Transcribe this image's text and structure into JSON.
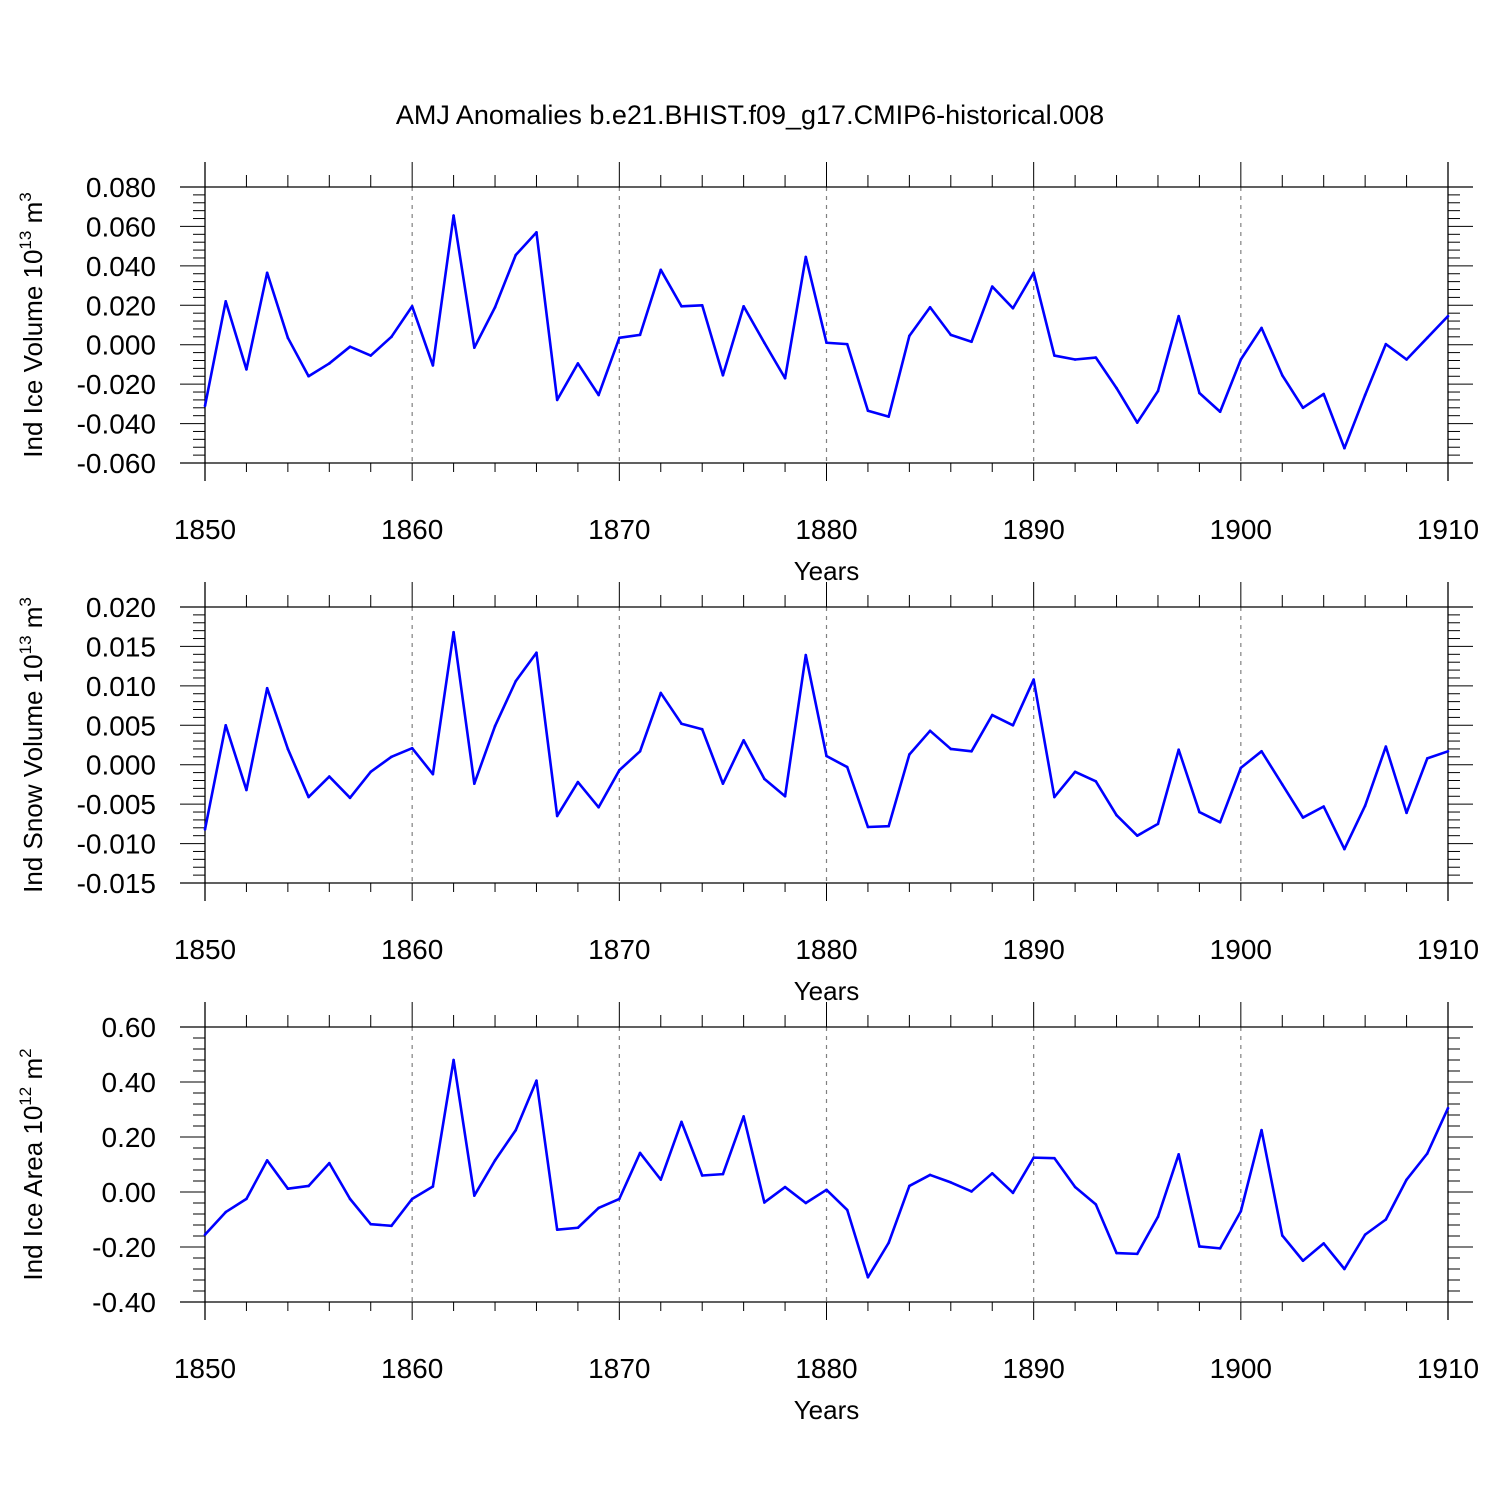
{
  "title": "AMJ Anomalies b.e21.BHIST.f09_g17.CMIP6-historical.008",
  "line_color": "#0000ff",
  "chart_data": [
    {
      "type": "line",
      "ylabel": "Ind Ice Volume 10",
      "ylabel_exp": "13",
      "ylabel_unit": " m",
      "ylabel_unit_exp": "3",
      "xlabel": "Years",
      "xlim": [
        1850,
        1910
      ],
      "ylim": [
        -0.06,
        0.08
      ],
      "x_ticks": [
        "1850",
        "1860",
        "1870",
        "1880",
        "1890",
        "1900",
        "1910"
      ],
      "y_ticks": [
        "0.080",
        "0.060",
        "0.040",
        "0.020",
        "0.000",
        "-0.020",
        "-0.040",
        "-0.060"
      ],
      "x": [
        1850,
        1851,
        1852,
        1853,
        1854,
        1855,
        1856,
        1857,
        1858,
        1859,
        1860,
        1861,
        1862,
        1863,
        1864,
        1865,
        1866,
        1867,
        1868,
        1869,
        1870,
        1871,
        1872,
        1873,
        1874,
        1875,
        1876,
        1877,
        1878,
        1879,
        1880,
        1881,
        1882,
        1883,
        1884,
        1885,
        1886,
        1887,
        1888,
        1889,
        1890,
        1891,
        1892,
        1893,
        1894,
        1895,
        1896,
        1897,
        1898,
        1899,
        1900,
        1901,
        1902,
        1903,
        1904,
        1905,
        1906,
        1907,
        1908,
        1909,
        1910
      ],
      "values": [
        -0.031,
        0.022,
        -0.0125,
        0.0365,
        0.0035,
        -0.016,
        -0.0095,
        -0.001,
        -0.0055,
        0.004,
        0.0195,
        -0.0105,
        0.0655,
        -0.0015,
        0.019,
        0.0455,
        0.057,
        -0.028,
        -0.0095,
        -0.0255,
        0.0035,
        0.005,
        0.038,
        0.0195,
        0.02,
        -0.0155,
        0.0195,
        0.001,
        -0.017,
        0.0445,
        0.001,
        0.0003,
        -0.0335,
        -0.0365,
        0.0045,
        0.019,
        0.005,
        0.0015,
        0.0295,
        0.0185,
        0.0365,
        -0.0055,
        -0.0075,
        -0.0065,
        -0.022,
        -0.0395,
        -0.0235,
        0.0145,
        -0.0245,
        -0.034,
        -0.0075,
        0.0085,
        -0.0155,
        -0.032,
        -0.025,
        -0.0525,
        -0.0255,
        0.0003,
        -0.0075,
        0.0035,
        0.0145
      ]
    },
    {
      "type": "line",
      "ylabel": "Ind Snow Volume 10",
      "ylabel_exp": "13",
      "ylabel_unit": " m",
      "ylabel_unit_exp": "3",
      "xlabel": "Years",
      "xlim": [
        1850,
        1910
      ],
      "ylim": [
        -0.015,
        0.02
      ],
      "x_ticks": [
        "1850",
        "1860",
        "1870",
        "1880",
        "1890",
        "1900",
        "1910"
      ],
      "y_ticks": [
        "0.020",
        "0.015",
        "0.010",
        "0.005",
        "0.000",
        "-0.005",
        "-0.010",
        "-0.015"
      ],
      "x": [
        1850,
        1851,
        1852,
        1853,
        1854,
        1855,
        1856,
        1857,
        1858,
        1859,
        1860,
        1861,
        1862,
        1863,
        1864,
        1865,
        1866,
        1867,
        1868,
        1869,
        1870,
        1871,
        1872,
        1873,
        1874,
        1875,
        1876,
        1877,
        1878,
        1879,
        1880,
        1881,
        1882,
        1883,
        1884,
        1885,
        1886,
        1887,
        1888,
        1889,
        1890,
        1891,
        1892,
        1893,
        1894,
        1895,
        1896,
        1897,
        1898,
        1899,
        1900,
        1901,
        1902,
        1903,
        1904,
        1905,
        1906,
        1907,
        1908,
        1909,
        1910
      ],
      "values": [
        -0.0082,
        0.005,
        -0.0032,
        0.0097,
        0.002,
        -0.0041,
        -0.0015,
        -0.0042,
        -0.0009,
        0.001,
        0.0021,
        -0.0012,
        0.0168,
        -0.0024,
        0.0049,
        0.0106,
        0.0142,
        -0.0065,
        -0.0022,
        -0.0054,
        -0.0007,
        0.0017,
        0.0091,
        0.0052,
        0.0045,
        -0.0024,
        0.0031,
        -0.0018,
        -0.004,
        0.0139,
        0.0011,
        -0.0003,
        -0.0079,
        -0.0078,
        0.0013,
        0.0043,
        0.002,
        0.0017,
        0.0063,
        0.005,
        0.0108,
        -0.0041,
        -0.0009,
        -0.0021,
        -0.0064,
        -0.009,
        -0.0075,
        0.0019,
        -0.006,
        -0.0073,
        -0.0004,
        0.0017,
        -0.0025,
        -0.0067,
        -0.0053,
        -0.0107,
        -0.0052,
        0.0023,
        -0.0061,
        0.0008,
        0.0017
      ]
    },
    {
      "type": "line",
      "ylabel": "Ind Ice Area 10",
      "ylabel_exp": "12",
      "ylabel_unit": " m",
      "ylabel_unit_exp": "2",
      "xlabel": "Years",
      "xlim": [
        1850,
        1910
      ],
      "ylim": [
        -0.4,
        0.6
      ],
      "x_ticks": [
        "1850",
        "1860",
        "1870",
        "1880",
        "1890",
        "1900",
        "1910"
      ],
      "y_ticks": [
        "0.60",
        "0.40",
        "0.20",
        "0.00",
        "-0.20",
        "-0.40"
      ],
      "x": [
        1850,
        1851,
        1852,
        1853,
        1854,
        1855,
        1856,
        1857,
        1858,
        1859,
        1860,
        1861,
        1862,
        1863,
        1864,
        1865,
        1866,
        1867,
        1868,
        1869,
        1870,
        1871,
        1872,
        1873,
        1874,
        1875,
        1876,
        1877,
        1878,
        1879,
        1880,
        1881,
        1882,
        1883,
        1884,
        1885,
        1886,
        1887,
        1888,
        1889,
        1890,
        1891,
        1892,
        1893,
        1894,
        1895,
        1896,
        1897,
        1898,
        1899,
        1900,
        1901,
        1902,
        1903,
        1904,
        1905,
        1906,
        1907,
        1908,
        1909,
        1910
      ],
      "values": [
        -0.155,
        -0.073,
        -0.025,
        0.115,
        0.012,
        0.022,
        0.105,
        -0.025,
        -0.117,
        -0.123,
        -0.025,
        0.02,
        0.48,
        -0.013,
        0.115,
        0.225,
        0.405,
        -0.137,
        -0.13,
        -0.058,
        -0.025,
        0.142,
        0.045,
        0.255,
        0.06,
        0.065,
        0.275,
        -0.038,
        0.018,
        -0.04,
        0.008,
        -0.065,
        -0.31,
        -0.185,
        0.022,
        0.062,
        0.035,
        0.002,
        0.068,
        -0.003,
        0.125,
        0.123,
        0.018,
        -0.045,
        -0.222,
        -0.225,
        -0.09,
        0.137,
        -0.198,
        -0.205,
        -0.07,
        0.225,
        -0.158,
        -0.25,
        -0.187,
        -0.28,
        -0.155,
        -0.1,
        0.045,
        0.14,
        0.305
      ]
    }
  ]
}
